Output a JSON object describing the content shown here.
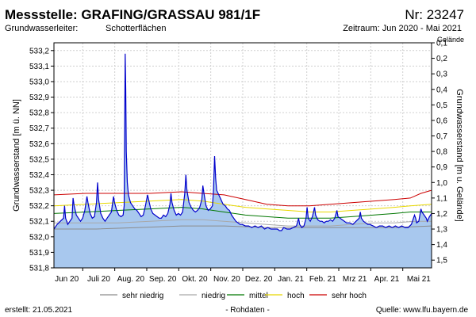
{
  "header": {
    "title": "Messstelle: GRAFING/GRASSAU 981/1F",
    "number": "Nr: 23247",
    "aquifer_label": "Grundwasserleiter:",
    "aquifer_value": "Schotterflächen",
    "period": "Zeitraum: Jun 2020 - Mai 2021"
  },
  "footer": {
    "created": "erstellt:  21.05.2021",
    "raw": "- Rohdaten -",
    "source": "Quelle:  www.lfu.bayern.de"
  },
  "colors": {
    "fill": "#a8c8ee",
    "line": "#0000cc",
    "sehr_niedrig": "#8c8c8c",
    "niedrig": "#a9a9a9",
    "mittel": "#007700",
    "hoch": "#e8d800",
    "sehr_hoch": "#cc0000"
  },
  "chart_data": {
    "type": "area",
    "ylabel_left": "Grundwasserstand [m ü. NN]",
    "ylabel_right": "Grundwasserstand [m u. Gelände]",
    "right_axis_top_label": "Gelände",
    "ylim_left": [
      531.8,
      533.25
    ],
    "ylim_right": [
      1.55,
      0.1
    ],
    "yticks_left": [
      "531,8",
      "531,9",
      "532,0",
      "532,1",
      "532,2",
      "532,3",
      "532,4",
      "532,5",
      "532,6",
      "532,7",
      "532,8",
      "532,9",
      "533,0",
      "533,1",
      "533,2"
    ],
    "yticks_right": [
      "1,5",
      "1,4",
      "1,3",
      "1,2",
      "1,1",
      "1,0",
      "0,9",
      "0,8",
      "0,7",
      "0,6",
      "0,5",
      "0,4",
      "0,3",
      "0,2",
      "0,1"
    ],
    "x_months": [
      "Jun 20",
      "Juli 20",
      "Aug. 20",
      "Sep. 20",
      "Okt. 20",
      "Nov. 20",
      "Dez. 20",
      "Jan. 21",
      "Feb. 21",
      "Mrz 21",
      "Apr. 21",
      "Mai 21"
    ],
    "grid": true,
    "x_range_days": [
      0,
      355
    ],
    "water_level": [
      [
        0,
        532.05
      ],
      [
        3,
        532.08
      ],
      [
        6,
        532.1
      ],
      [
        9,
        532.12
      ],
      [
        10,
        532.2
      ],
      [
        11,
        532.12
      ],
      [
        13,
        532.08
      ],
      [
        15,
        532.1
      ],
      [
        17,
        532.12
      ],
      [
        18,
        532.25
      ],
      [
        19,
        532.2
      ],
      [
        21,
        532.14
      ],
      [
        23,
        532.12
      ],
      [
        25,
        532.1
      ],
      [
        27,
        532.12
      ],
      [
        29,
        532.17
      ],
      [
        31,
        532.26
      ],
      [
        32,
        532.22
      ],
      [
        34,
        532.15
      ],
      [
        36,
        532.12
      ],
      [
        38,
        532.13
      ],
      [
        40,
        532.22
      ],
      [
        41,
        532.35
      ],
      [
        42,
        532.24
      ],
      [
        44,
        532.15
      ],
      [
        46,
        532.12
      ],
      [
        48,
        532.1
      ],
      [
        50,
        532.12
      ],
      [
        52,
        532.14
      ],
      [
        54,
        532.16
      ],
      [
        56,
        532.26
      ],
      [
        57,
        532.22
      ],
      [
        59,
        532.17
      ],
      [
        61,
        532.14
      ],
      [
        63,
        532.13
      ],
      [
        65,
        532.14
      ],
      [
        66,
        532.2
      ],
      [
        67,
        533.18
      ],
      [
        67.5,
        532.95
      ],
      [
        68,
        532.55
      ],
      [
        69,
        532.35
      ],
      [
        70,
        532.27
      ],
      [
        72,
        532.22
      ],
      [
        74,
        532.2
      ],
      [
        76,
        532.18
      ],
      [
        78,
        532.17
      ],
      [
        80,
        532.15
      ],
      [
        82,
        532.13
      ],
      [
        84,
        532.14
      ],
      [
        86,
        532.2
      ],
      [
        88,
        532.27
      ],
      [
        89,
        532.24
      ],
      [
        91,
        532.18
      ],
      [
        93,
        532.15
      ],
      [
        95,
        532.14
      ],
      [
        97,
        532.13
      ],
      [
        99,
        532.12
      ],
      [
        101,
        532.12
      ],
      [
        103,
        532.14
      ],
      [
        105,
        532.13
      ],
      [
        107,
        532.15
      ],
      [
        109,
        532.21
      ],
      [
        110,
        532.28
      ],
      [
        111,
        532.22
      ],
      [
        113,
        532.17
      ],
      [
        115,
        532.14
      ],
      [
        117,
        532.15
      ],
      [
        119,
        532.14
      ],
      [
        121,
        532.16
      ],
      [
        123,
        532.28
      ],
      [
        124,
        532.4
      ],
      [
        125,
        532.3
      ],
      [
        127,
        532.22
      ],
      [
        129,
        532.19
      ],
      [
        131,
        532.17
      ],
      [
        133,
        532.16
      ],
      [
        135,
        532.17
      ],
      [
        137,
        532.19
      ],
      [
        139,
        532.24
      ],
      [
        140,
        532.33
      ],
      [
        141,
        532.28
      ],
      [
        143,
        532.2
      ],
      [
        145,
        532.17
      ],
      [
        147,
        532.18
      ],
      [
        149,
        532.2
      ],
      [
        150,
        532.3
      ],
      [
        151,
        532.52
      ],
      [
        152,
        532.38
      ],
      [
        153,
        532.3
      ],
      [
        155,
        532.27
      ],
      [
        157,
        532.24
      ],
      [
        159,
        532.21
      ],
      [
        161,
        532.2
      ],
      [
        163,
        532.18
      ],
      [
        165,
        532.17
      ],
      [
        167,
        532.14
      ],
      [
        169,
        532.12
      ],
      [
        171,
        532.1
      ],
      [
        173,
        532.09
      ],
      [
        175,
        532.08
      ],
      [
        177,
        532.08
      ],
      [
        180,
        532.07
      ],
      [
        183,
        532.07
      ],
      [
        186,
        532.06
      ],
      [
        189,
        532.07
      ],
      [
        192,
        532.06
      ],
      [
        195,
        532.07
      ],
      [
        198,
        532.05
      ],
      [
        201,
        532.06
      ],
      [
        204,
        532.05
      ],
      [
        207,
        532.05
      ],
      [
        210,
        532.05
      ],
      [
        212,
        532.04
      ],
      [
        214,
        532.04
      ],
      [
        216,
        532.06
      ],
      [
        219,
        532.05
      ],
      [
        222,
        532.05
      ],
      [
        225,
        532.06
      ],
      [
        228,
        532.07
      ],
      [
        230,
        532.12
      ],
      [
        231,
        532.08
      ],
      [
        233,
        532.06
      ],
      [
        235,
        532.07
      ],
      [
        237,
        532.12
      ],
      [
        238,
        532.19
      ],
      [
        239,
        532.12
      ],
      [
        241,
        532.1
      ],
      [
        243,
        532.13
      ],
      [
        245,
        532.19
      ],
      [
        246,
        532.14
      ],
      [
        248,
        532.11
      ],
      [
        250,
        532.1
      ],
      [
        252,
        532.1
      ],
      [
        254,
        532.09
      ],
      [
        256,
        532.1
      ],
      [
        258,
        532.1
      ],
      [
        260,
        532.11
      ],
      [
        262,
        532.1
      ],
      [
        264,
        532.12
      ],
      [
        266,
        532.17
      ],
      [
        267,
        532.13
      ],
      [
        269,
        532.12
      ],
      [
        271,
        532.11
      ],
      [
        273,
        532.1
      ],
      [
        275,
        532.09
      ],
      [
        278,
        532.09
      ],
      [
        281,
        532.08
      ],
      [
        284,
        532.1
      ],
      [
        287,
        532.12
      ],
      [
        288,
        532.16
      ],
      [
        289,
        532.12
      ],
      [
        291,
        532.1
      ],
      [
        293,
        532.09
      ],
      [
        295,
        532.08
      ],
      [
        297,
        532.08
      ],
      [
        300,
        532.07
      ],
      [
        303,
        532.06
      ],
      [
        306,
        532.07
      ],
      [
        309,
        532.07
      ],
      [
        312,
        532.06
      ],
      [
        315,
        532.07
      ],
      [
        318,
        532.06
      ],
      [
        321,
        532.07
      ],
      [
        324,
        532.06
      ],
      [
        327,
        532.07
      ],
      [
        330,
        532.06
      ],
      [
        333,
        532.06
      ],
      [
        336,
        532.08
      ],
      [
        338,
        532.12
      ],
      [
        339,
        532.14
      ],
      [
        340,
        532.12
      ],
      [
        341,
        532.09
      ],
      [
        343,
        532.1
      ],
      [
        345,
        532.18
      ],
      [
        346,
        532.16
      ],
      [
        348,
        532.14
      ],
      [
        350,
        532.12
      ],
      [
        351,
        532.1
      ],
      [
        353,
        532.13
      ],
      [
        355,
        532.15
      ]
    ],
    "reference_levels": {
      "sehr_hoch": [
        [
          0,
          532.27
        ],
        [
          30,
          532.28
        ],
        [
          60,
          532.28
        ],
        [
          90,
          532.28
        ],
        [
          120,
          532.29
        ],
        [
          140,
          532.28
        ],
        [
          160,
          532.27
        ],
        [
          180,
          532.24
        ],
        [
          200,
          532.21
        ],
        [
          220,
          532.2
        ],
        [
          240,
          532.2
        ],
        [
          260,
          532.21
        ],
        [
          280,
          532.22
        ],
        [
          300,
          532.23
        ],
        [
          320,
          532.24
        ],
        [
          335,
          532.25
        ],
        [
          345,
          532.28
        ],
        [
          355,
          532.3
        ]
      ],
      "hoch": [
        [
          0,
          532.2
        ],
        [
          30,
          532.21
        ],
        [
          60,
          532.22
        ],
        [
          90,
          532.23
        ],
        [
          120,
          532.24
        ],
        [
          140,
          532.23
        ],
        [
          160,
          532.21
        ],
        [
          180,
          532.19
        ],
        [
          200,
          532.18
        ],
        [
          220,
          532.17
        ],
        [
          240,
          532.16
        ],
        [
          260,
          532.16
        ],
        [
          280,
          532.17
        ],
        [
          300,
          532.18
        ],
        [
          320,
          532.19
        ],
        [
          335,
          532.2
        ],
        [
          355,
          532.21
        ]
      ],
      "mittel": [
        [
          0,
          532.15
        ],
        [
          30,
          532.16
        ],
        [
          60,
          532.17
        ],
        [
          90,
          532.18
        ],
        [
          120,
          532.19
        ],
        [
          140,
          532.18
        ],
        [
          160,
          532.16
        ],
        [
          180,
          532.14
        ],
        [
          200,
          532.13
        ],
        [
          220,
          532.12
        ],
        [
          240,
          532.12
        ],
        [
          260,
          532.12
        ],
        [
          280,
          532.13
        ],
        [
          300,
          532.14
        ],
        [
          320,
          532.15
        ],
        [
          335,
          532.16
        ],
        [
          355,
          532.16
        ]
      ],
      "niedrig": [
        [
          0,
          532.09
        ],
        [
          30,
          532.09
        ],
        [
          60,
          532.09
        ],
        [
          90,
          532.1
        ],
        [
          120,
          532.11
        ],
        [
          140,
          532.11
        ],
        [
          160,
          532.1
        ],
        [
          180,
          532.09
        ],
        [
          200,
          532.08
        ],
        [
          220,
          532.07
        ],
        [
          240,
          532.07
        ],
        [
          260,
          532.07
        ],
        [
          280,
          532.08
        ],
        [
          300,
          532.09
        ],
        [
          320,
          532.09
        ],
        [
          340,
          532.1
        ],
        [
          355,
          532.1
        ]
      ],
      "sehr_niedrig": [
        [
          0,
          532.05
        ],
        [
          40,
          532.05
        ],
        [
          80,
          532.06
        ],
        [
          120,
          532.07
        ],
        [
          160,
          532.07
        ],
        [
          200,
          532.06
        ],
        [
          240,
          532.06
        ],
        [
          280,
          532.06
        ],
        [
          320,
          532.06
        ],
        [
          355,
          532.07
        ]
      ]
    },
    "legend": [
      "sehr niedrig",
      "niedrig",
      "mittel",
      "hoch",
      "sehr hoch"
    ]
  }
}
